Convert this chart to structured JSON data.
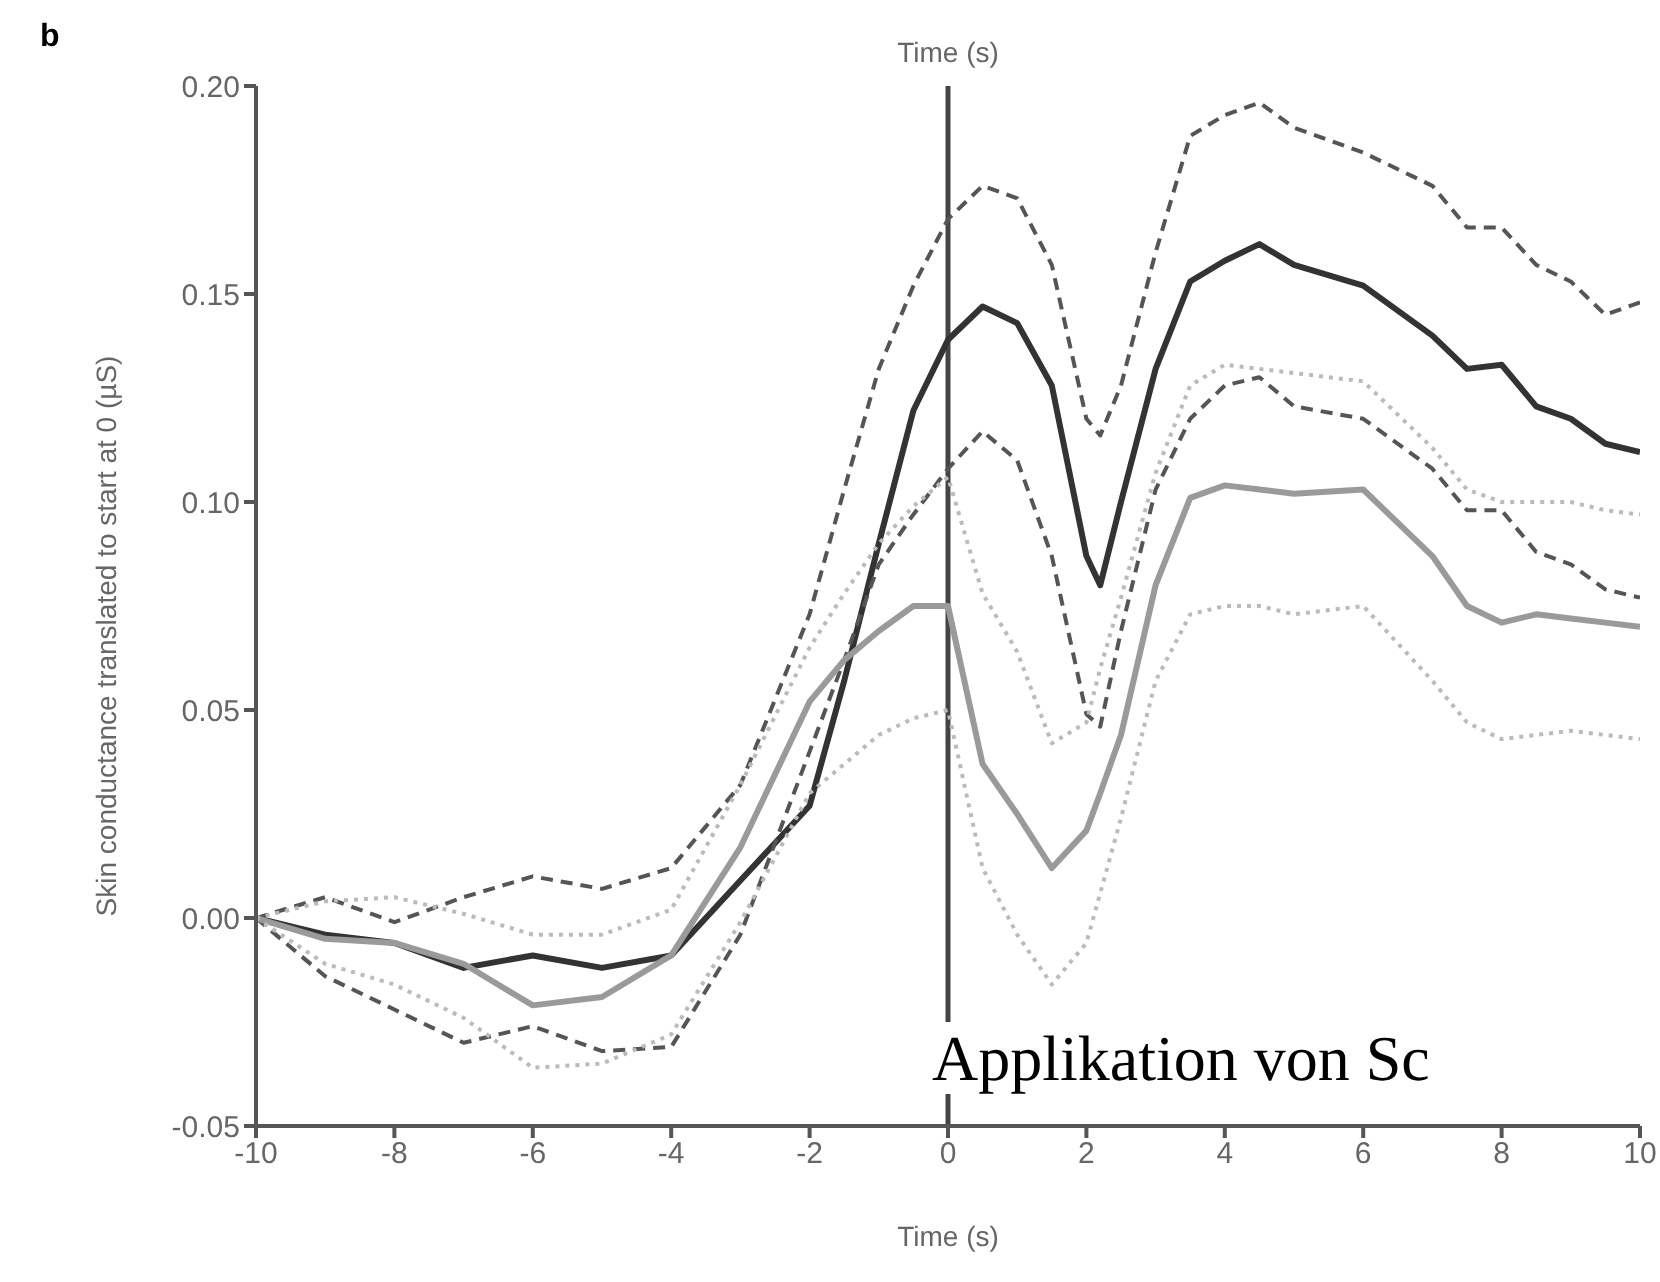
{
  "chart_data": {
    "type": "line",
    "xlabel": "Time (s)",
    "ylabel": "Skin conductance translated to start at 0 (µS)",
    "annotations": [
      "b",
      "Applikation von Sc"
    ],
    "x": [
      -10,
      -9,
      -8,
      -7,
      -6,
      -5,
      -4,
      -3,
      -2,
      -1.5,
      -1,
      -0.5,
      0,
      0.5,
      1,
      1.5,
      2,
      2.2,
      2.5,
      3,
      3.5,
      4,
      4.5,
      5,
      6,
      7,
      7.5,
      8,
      8.5,
      9,
      9.5,
      10
    ],
    "series": [
      {
        "color": "#333333",
        "line_style": "solid",
        "values": [
          0,
          -0.004,
          -0.006,
          -0.012,
          -0.009,
          -0.012,
          -0.009,
          0.009,
          0.027,
          0.057,
          0.09,
          0.122,
          0.139,
          0.147,
          0.143,
          0.128,
          0.087,
          0.08,
          0.1,
          0.132,
          0.153,
          0.158,
          0.162,
          0.157,
          0.152,
          0.14,
          0.132,
          0.133,
          0.123,
          0.12,
          0.114,
          0.112
        ]
      },
      {
        "color": "#555555",
        "line_style": "dashed",
        "values": [
          0,
          0.005,
          -0.001,
          0.005,
          0.01,
          0.007,
          0.012,
          0.032,
          0.073,
          0.103,
          0.132,
          0.152,
          0.168,
          0.176,
          0.173,
          0.157,
          0.12,
          0.116,
          0.128,
          0.16,
          0.188,
          0.193,
          0.196,
          0.19,
          0.184,
          0.176,
          0.166,
          0.166,
          0.157,
          0.153,
          0.145,
          0.148
        ]
      },
      {
        "color": "#555555",
        "line_style": "dashed",
        "values": [
          0,
          -0.014,
          -0.022,
          -0.03,
          -0.026,
          -0.032,
          -0.031,
          -0.004,
          0.04,
          0.062,
          0.085,
          0.097,
          0.108,
          0.117,
          0.11,
          0.087,
          0.049,
          0.046,
          0.069,
          0.103,
          0.12,
          0.128,
          0.13,
          0.123,
          0.12,
          0.108,
          0.098,
          0.098,
          0.088,
          0.085,
          0.079,
          0.077
        ]
      },
      {
        "color": "#9a9a9a",
        "line_style": "solid",
        "values": [
          0,
          -0.005,
          -0.006,
          -0.011,
          -0.021,
          -0.019,
          -0.009,
          0.017,
          0.052,
          0.062,
          0.069,
          0.075,
          0.075,
          0.037,
          0.025,
          0.012,
          0.021,
          0.03,
          0.044,
          0.08,
          0.101,
          0.104,
          0.103,
          0.102,
          0.103,
          0.087,
          0.075,
          0.071,
          0.073,
          0.072,
          0.071,
          0.07
        ]
      },
      {
        "color": "#bbbbbb",
        "line_style": "dotted",
        "values": [
          0,
          0.004,
          0.005,
          0.001,
          -0.004,
          -0.004,
          0.002,
          0.032,
          0.065,
          0.078,
          0.09,
          0.099,
          0.106,
          0.078,
          0.064,
          0.042,
          0.047,
          0.06,
          0.077,
          0.107,
          0.128,
          0.133,
          0.132,
          0.131,
          0.129,
          0.113,
          0.103,
          0.1,
          0.1,
          0.1,
          0.098,
          0.097
        ]
      },
      {
        "color": "#bbbbbb",
        "line_style": "dotted",
        "values": [
          0,
          -0.011,
          -0.016,
          -0.024,
          -0.036,
          -0.035,
          -0.028,
          -0.001,
          0.03,
          0.037,
          0.044,
          0.048,
          0.05,
          0.012,
          -0.004,
          -0.016,
          -0.006,
          0.006,
          0.024,
          0.057,
          0.073,
          0.075,
          0.075,
          0.073,
          0.075,
          0.057,
          0.047,
          0.043,
          0.044,
          0.045,
          0.044,
          0.043
        ]
      }
    ],
    "xlim": [
      -10,
      10
    ],
    "xticks": [
      -10,
      -8,
      -6,
      -4,
      -2,
      0,
      2,
      4,
      6,
      8,
      10
    ],
    "ylim": [
      -0.05,
      0.2
    ],
    "yticks": [
      {
        "value": -0.05,
        "label": "-0.05"
      },
      {
        "value": 0,
        "label": "0.00"
      },
      {
        "value": 0.05,
        "label": "0.05"
      },
      {
        "value": 0.1,
        "label": "0.10"
      },
      {
        "value": 0.15,
        "label": "0.15"
      },
      {
        "value": 0.2,
        "label": "0.20"
      }
    ],
    "ref_lines": [
      {
        "axis": "x",
        "value": 0,
        "label": "Time (s)",
        "color": "#444444"
      }
    ],
    "grid": false,
    "legend": false,
    "marker": "none"
  }
}
